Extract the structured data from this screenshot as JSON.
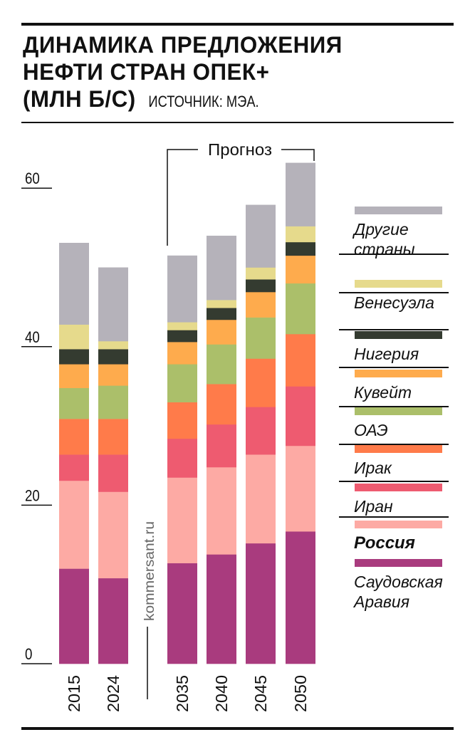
{
  "header": {
    "title_lines": [
      "ДИНАМИКА ПРЕДЛОЖЕНИЯ",
      "НЕФТИ СТРАН ОПЕК+",
      "(МЛН Б/С)"
    ],
    "source": "ИСТОЧНИК: МЭА."
  },
  "watermark": "kommersant.ru",
  "chart_data": {
    "type": "bar",
    "stacked": true,
    "title": "ДИНАМИКА ПРЕДЛОЖЕНИЯ НЕФТИ СТРАН ОПЕК+ (МЛН Б/С)",
    "ylabel": "млн б/с",
    "ylim": [
      0,
      60
    ],
    "yticks": [
      "0",
      "20",
      "40",
      "60"
    ],
    "categories": [
      "2015",
      "2024",
      "2035",
      "2040",
      "2045",
      "2050"
    ],
    "forecast_label": "Прогноз",
    "forecast_categories": [
      "2035",
      "2040",
      "2045",
      "2050"
    ],
    "series": [
      {
        "name": "Саудовская Аравия",
        "color": "#a93b7e",
        "values": [
          12.0,
          10.8,
          12.7,
          13.8,
          15.2,
          16.7
        ]
      },
      {
        "name": "Россия",
        "color": "#fdaaa4",
        "values": [
          11.1,
          10.9,
          10.8,
          11.0,
          11.2,
          10.8
        ]
      },
      {
        "name": "Иран",
        "color": "#ee5b70",
        "values": [
          3.3,
          4.7,
          4.9,
          5.4,
          6.0,
          7.5
        ]
      },
      {
        "name": "Ирак",
        "color": "#ff7b4a",
        "values": [
          4.5,
          4.5,
          4.6,
          5.1,
          6.1,
          6.6
        ]
      },
      {
        "name": "ОАЭ",
        "color": "#abbf6a",
        "values": [
          3.9,
          4.2,
          4.8,
          5.0,
          5.2,
          6.4
        ]
      },
      {
        "name": "Кувейт",
        "color": "#feab4d",
        "values": [
          3.0,
          2.7,
          2.8,
          3.1,
          3.2,
          3.5
        ]
      },
      {
        "name": "Нигерия",
        "color": "#343b30",
        "values": [
          1.9,
          1.9,
          1.5,
          1.5,
          1.6,
          1.7
        ]
      },
      {
        "name": "Венесуэла",
        "color": "#e6da8c",
        "values": [
          3.1,
          1.0,
          1.0,
          1.0,
          1.5,
          2.0
        ]
      },
      {
        "name": "Другие страны",
        "color": "#b5b2ba",
        "values": [
          10.3,
          9.3,
          8.4,
          8.1,
          7.9,
          8.0
        ]
      }
    ],
    "legend_placement": "right"
  },
  "legend": [
    {
      "label": "Другие\nстраны",
      "color": "#b5b2ba"
    },
    {
      "label": "Венесуэла",
      "color": "#e6da8c"
    },
    {
      "label": "Нигерия",
      "color": "#343b30"
    },
    {
      "label": "Кувейт",
      "color": "#feab4d"
    },
    {
      "label": "ОАЭ",
      "color": "#abbf6a"
    },
    {
      "label": "Ирак",
      "color": "#ff7b4a"
    },
    {
      "label": "Иран",
      "color": "#ee5b70"
    },
    {
      "label": "Россия",
      "color": "#fdaaa4",
      "bold": true
    },
    {
      "label": "Саудовская\nАравия",
      "color": "#a93b7e"
    }
  ]
}
